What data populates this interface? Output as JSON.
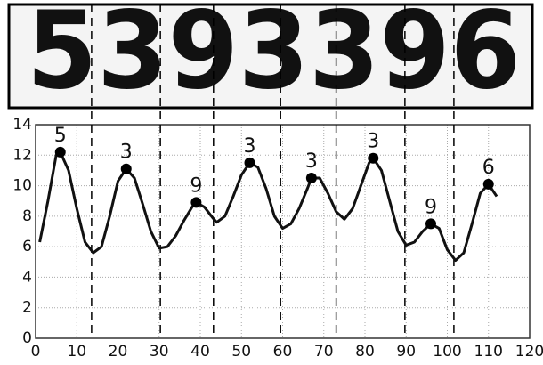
{
  "chart_data": {
    "type": "line",
    "image_text": "5393396",
    "x": [
      1,
      3,
      5,
      6,
      8,
      10,
      12,
      14,
      16,
      18,
      20,
      22,
      24,
      26,
      28,
      30,
      32,
      34,
      36,
      38,
      39,
      41,
      43,
      44,
      46,
      48,
      50,
      52,
      54,
      56,
      58,
      60,
      62,
      64,
      66,
      67,
      69,
      71,
      73,
      75,
      77,
      79,
      81,
      82,
      84,
      86,
      88,
      90,
      92,
      94,
      96,
      98,
      100,
      102,
      104,
      106,
      108,
      110,
      112
    ],
    "values": [
      6.3,
      9,
      12,
      12.2,
      11,
      8.5,
      6.3,
      5.6,
      6,
      8,
      10.3,
      11.1,
      10.5,
      8.8,
      7,
      5.9,
      6,
      6.7,
      7.7,
      8.6,
      8.9,
      8.6,
      7.9,
      7.6,
      8,
      9.3,
      10.7,
      11.5,
      11.2,
      9.8,
      8,
      7.2,
      7.5,
      8.5,
      9.8,
      10.5,
      10.5,
      9.5,
      8.3,
      7.8,
      8.5,
      10,
      11.5,
      11.8,
      11,
      9,
      7,
      6.1,
      6.3,
      7,
      7.5,
      7.2,
      5.8,
      5.1,
      5.6,
      7.5,
      9.5,
      10.1,
      9.3
    ],
    "color": "#111111",
    "peaks": [
      {
        "x": 6,
        "y": 12.2,
        "label": "5"
      },
      {
        "x": 22,
        "y": 11.1,
        "label": "3"
      },
      {
        "x": 39,
        "y": 8.9,
        "label": "9"
      },
      {
        "x": 52,
        "y": 11.5,
        "label": "3"
      },
      {
        "x": 67,
        "y": 10.5,
        "label": "3"
      },
      {
        "x": 82,
        "y": 11.8,
        "label": "3"
      },
      {
        "x": 96,
        "y": 7.5,
        "label": "9"
      },
      {
        "x": 110,
        "y": 10.1,
        "label": "6"
      }
    ],
    "dividers": [
      13.6,
      30.3,
      43.2,
      59.5,
      73,
      89.7,
      101.6
    ],
    "xlim": [
      0,
      120
    ],
    "xticks": [
      0,
      10,
      20,
      30,
      40,
      50,
      60,
      70,
      80,
      90,
      100,
      110,
      120
    ],
    "ylim": [
      0,
      14
    ],
    "yticks": [
      0,
      2,
      4,
      6,
      8,
      10,
      12,
      14
    ],
    "grid": true
  }
}
